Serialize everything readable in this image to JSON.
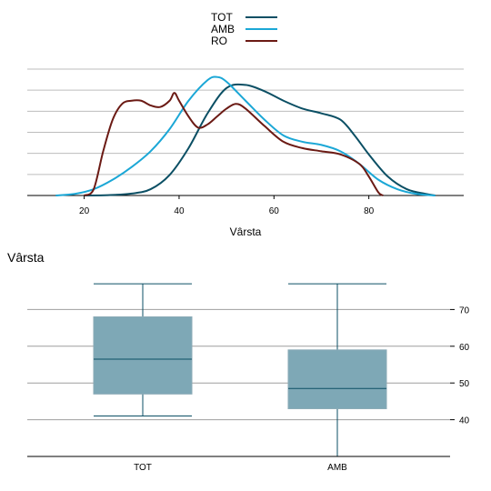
{
  "chart_data": [
    {
      "type": "line",
      "subtype": "density",
      "xlabel": "Vârsta",
      "ylabel": "",
      "xlim": [
        8,
        100
      ],
      "xticks": [
        20,
        40,
        60,
        80
      ],
      "grid": "horizontal",
      "legend_position": "top-center",
      "series": [
        {
          "name": "TOT",
          "color": "#0b4f64",
          "points": [
            [
              20,
              0.0
            ],
            [
              25,
              0.002
            ],
            [
              30,
              0.012
            ],
            [
              34,
              0.04
            ],
            [
              38,
              0.13
            ],
            [
              42,
              0.3
            ],
            [
              46,
              0.52
            ],
            [
              50,
              0.68
            ],
            [
              54,
              0.7
            ],
            [
              58,
              0.66
            ],
            [
              62,
              0.6
            ],
            [
              66,
              0.55
            ],
            [
              70,
              0.52
            ],
            [
              74,
              0.48
            ],
            [
              77,
              0.38
            ],
            [
              80,
              0.26
            ],
            [
              84,
              0.12
            ],
            [
              88,
              0.04
            ],
            [
              92,
              0.01
            ],
            [
              94,
              0.0
            ]
          ]
        },
        {
          "name": "AMB",
          "color": "#1ba7d6",
          "points": [
            [
              14,
              0.0
            ],
            [
              18,
              0.01
            ],
            [
              22,
              0.04
            ],
            [
              26,
              0.1
            ],
            [
              30,
              0.18
            ],
            [
              34,
              0.28
            ],
            [
              38,
              0.42
            ],
            [
              42,
              0.6
            ],
            [
              46,
              0.73
            ],
            [
              48,
              0.75
            ],
            [
              50,
              0.72
            ],
            [
              54,
              0.6
            ],
            [
              58,
              0.48
            ],
            [
              62,
              0.38
            ],
            [
              66,
              0.34
            ],
            [
              70,
              0.32
            ],
            [
              74,
              0.28
            ],
            [
              78,
              0.2
            ],
            [
              82,
              0.1
            ],
            [
              86,
              0.04
            ],
            [
              90,
              0.01
            ],
            [
              94,
              0.0
            ]
          ]
        },
        {
          "name": "RO",
          "color": "#6b1a14",
          "points": [
            [
              20,
              0.0
            ],
            [
              22,
              0.04
            ],
            [
              24,
              0.28
            ],
            [
              26,
              0.48
            ],
            [
              28,
              0.58
            ],
            [
              30,
              0.6
            ],
            [
              32,
              0.6
            ],
            [
              34,
              0.57
            ],
            [
              36,
              0.56
            ],
            [
              38,
              0.6
            ],
            [
              39,
              0.65
            ],
            [
              40,
              0.6
            ],
            [
              42,
              0.5
            ],
            [
              44,
              0.43
            ],
            [
              46,
              0.45
            ],
            [
              48,
              0.5
            ],
            [
              50,
              0.55
            ],
            [
              52,
              0.58
            ],
            [
              54,
              0.55
            ],
            [
              58,
              0.44
            ],
            [
              62,
              0.34
            ],
            [
              66,
              0.3
            ],
            [
              70,
              0.28
            ],
            [
              74,
              0.26
            ],
            [
              78,
              0.2
            ],
            [
              80,
              0.12
            ],
            [
              82,
              0.02
            ],
            [
              83,
              0.0
            ]
          ]
        }
      ]
    },
    {
      "type": "box",
      "title": "Vârsta",
      "categories": [
        "TOT",
        "AMB"
      ],
      "ylim": [
        30,
        80
      ],
      "yticks": [
        40,
        50,
        60,
        70
      ],
      "grid": "horizontal",
      "box_color": "#7ea8b6",
      "line_color": "#0b4f64",
      "boxes": [
        {
          "name": "TOT",
          "whisker_low": 41,
          "q1": 47,
          "median": 56.5,
          "q3": 68,
          "whisker_high": 77
        },
        {
          "name": "AMB",
          "whisker_low": 30,
          "q1": 43,
          "median": 48.5,
          "q3": 59,
          "whisker_high": 77
        }
      ]
    }
  ]
}
